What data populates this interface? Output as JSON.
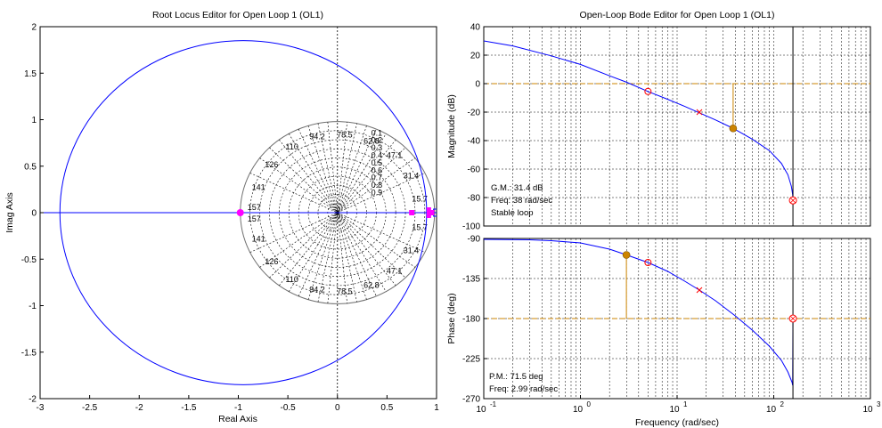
{
  "window": {
    "background": "#ffffff"
  },
  "colors": {
    "locus": "#0000ff",
    "marker": "#ff00ff",
    "grid": "#000000",
    "margin": "#cc8400",
    "pole": "#ff0000",
    "crossover": "#000000"
  },
  "root_locus": {
    "title": "Root Locus Editor for Open Loop 1 (OL1)",
    "xlabel": "Real Axis",
    "ylabel": "Imag Axis",
    "xticks": [
      "-3",
      "-2.5",
      "-2",
      "-1.5",
      "-1",
      "-0.5",
      "0",
      "0.5",
      "1"
    ],
    "yticks": [
      "2",
      "1.5",
      "1",
      "0.5",
      "0",
      "-0.5",
      "-1",
      "-1.5",
      "-2"
    ],
    "damping_labels": [
      "0.1",
      "0.2",
      "0.3",
      "0.4",
      "0.5",
      "0.6",
      "0.7",
      "0.8",
      "0.9"
    ],
    "freq_labels": [
      "15.7",
      "31.4",
      "47.1",
      "62.8",
      "78.5",
      "94.2",
      "110",
      "126",
      "141",
      "157"
    ]
  },
  "bode": {
    "title": "Open-Loop Bode Editor for Open Loop 1 (OL1)",
    "xlabel": "Frequency (rad/sec)",
    "xtick_base": "10",
    "xtick_exps": [
      "-1",
      "0",
      "1",
      "2",
      "3"
    ],
    "magnitude": {
      "ylabel": "Magnitude (dB)",
      "yticks": [
        "40",
        "20",
        "0",
        "-20",
        "-40",
        "-60",
        "-80",
        "-100"
      ],
      "gm_text": "G.M.: 31.4 dB",
      "gm_freq_text": "Freq: 38 rad/sec",
      "stable_text": "Stable loop"
    },
    "phase": {
      "ylabel": "Phase (deg)",
      "yticks": [
        "-90",
        "-135",
        "-180",
        "-225",
        "-270"
      ],
      "pm_text": "P.M.: 71.5 deg",
      "pm_freq_text": "Freq: 2.99 rad/sec"
    }
  },
  "chart_data": [
    {
      "type": "scatter",
      "title": "Root Locus Editor for Open Loop 1 (OL1)",
      "xlabel": "Real Axis",
      "ylabel": "Imag Axis",
      "xlim": [
        -3,
        1
      ],
      "ylim": [
        -2,
        2
      ],
      "grid": "s-plane damping/frequency grid",
      "locus_circle": {
        "center": [
          -0.95,
          0
        ],
        "radius": 1.85
      },
      "locus_real_axis": [
        -3,
        1
      ],
      "closed_loop_poles": [
        [
          -0.98,
          0
        ],
        [
          0.75,
          0
        ],
        [
          0.93,
          0
        ],
        [
          0.95,
          0
        ]
      ]
    },
    {
      "type": "line",
      "title": "Open-Loop Bode Editor for Open Loop 1 (OL1)",
      "xlabel": "Frequency (rad/sec)",
      "ylabel": "Magnitude (dB)",
      "xscale": "log",
      "xlim": [
        0.1,
        1000
      ],
      "ylim": [
        -100,
        40
      ],
      "series": [
        {
          "x": [
            0.1,
            0.2,
            0.5,
            1,
            2,
            3,
            5,
            8,
            12,
            17,
            25,
            38,
            60,
            90,
            120,
            140,
            152,
            157,
            158
          ],
          "values": [
            30,
            26.5,
            19.5,
            13.5,
            5.5,
            1,
            -5.5,
            -11,
            -16,
            -20.5,
            -25.5,
            -31.4,
            -39,
            -47,
            -56,
            -64,
            -72,
            -78,
            -82
          ]
        }
      ],
      "gain_margin_db": 31.4,
      "gain_margin_freq": 38,
      "pole_markers": [
        [
          5,
          -5.5
        ],
        [
          17,
          -20
        ]
      ],
      "crossover_freq": 158
    },
    {
      "type": "line",
      "title": "",
      "xlabel": "Frequency (rad/sec)",
      "ylabel": "Phase (deg)",
      "xscale": "log",
      "xlim": [
        0.1,
        1000
      ],
      "ylim": [
        -270,
        -90
      ],
      "series": [
        {
          "x": [
            0.1,
            0.3,
            0.5,
            1,
            2,
            3,
            5,
            8,
            12,
            17,
            25,
            40,
            60,
            90,
            120,
            140,
            150,
            155,
            157,
            158
          ],
          "values": [
            -91,
            -91.5,
            -92.5,
            -95,
            -102,
            -108.5,
            -117,
            -127,
            -138,
            -148,
            -160,
            -177,
            -193,
            -211,
            -227,
            -240,
            -248,
            -252,
            -255,
            -180
          ]
        }
      ],
      "phase_margin_deg": 71.5,
      "phase_margin_freq": 2.99,
      "pole_markers": [
        [
          5,
          -117
        ],
        [
          17,
          -148
        ]
      ],
      "crossover_freq": 158
    }
  ]
}
